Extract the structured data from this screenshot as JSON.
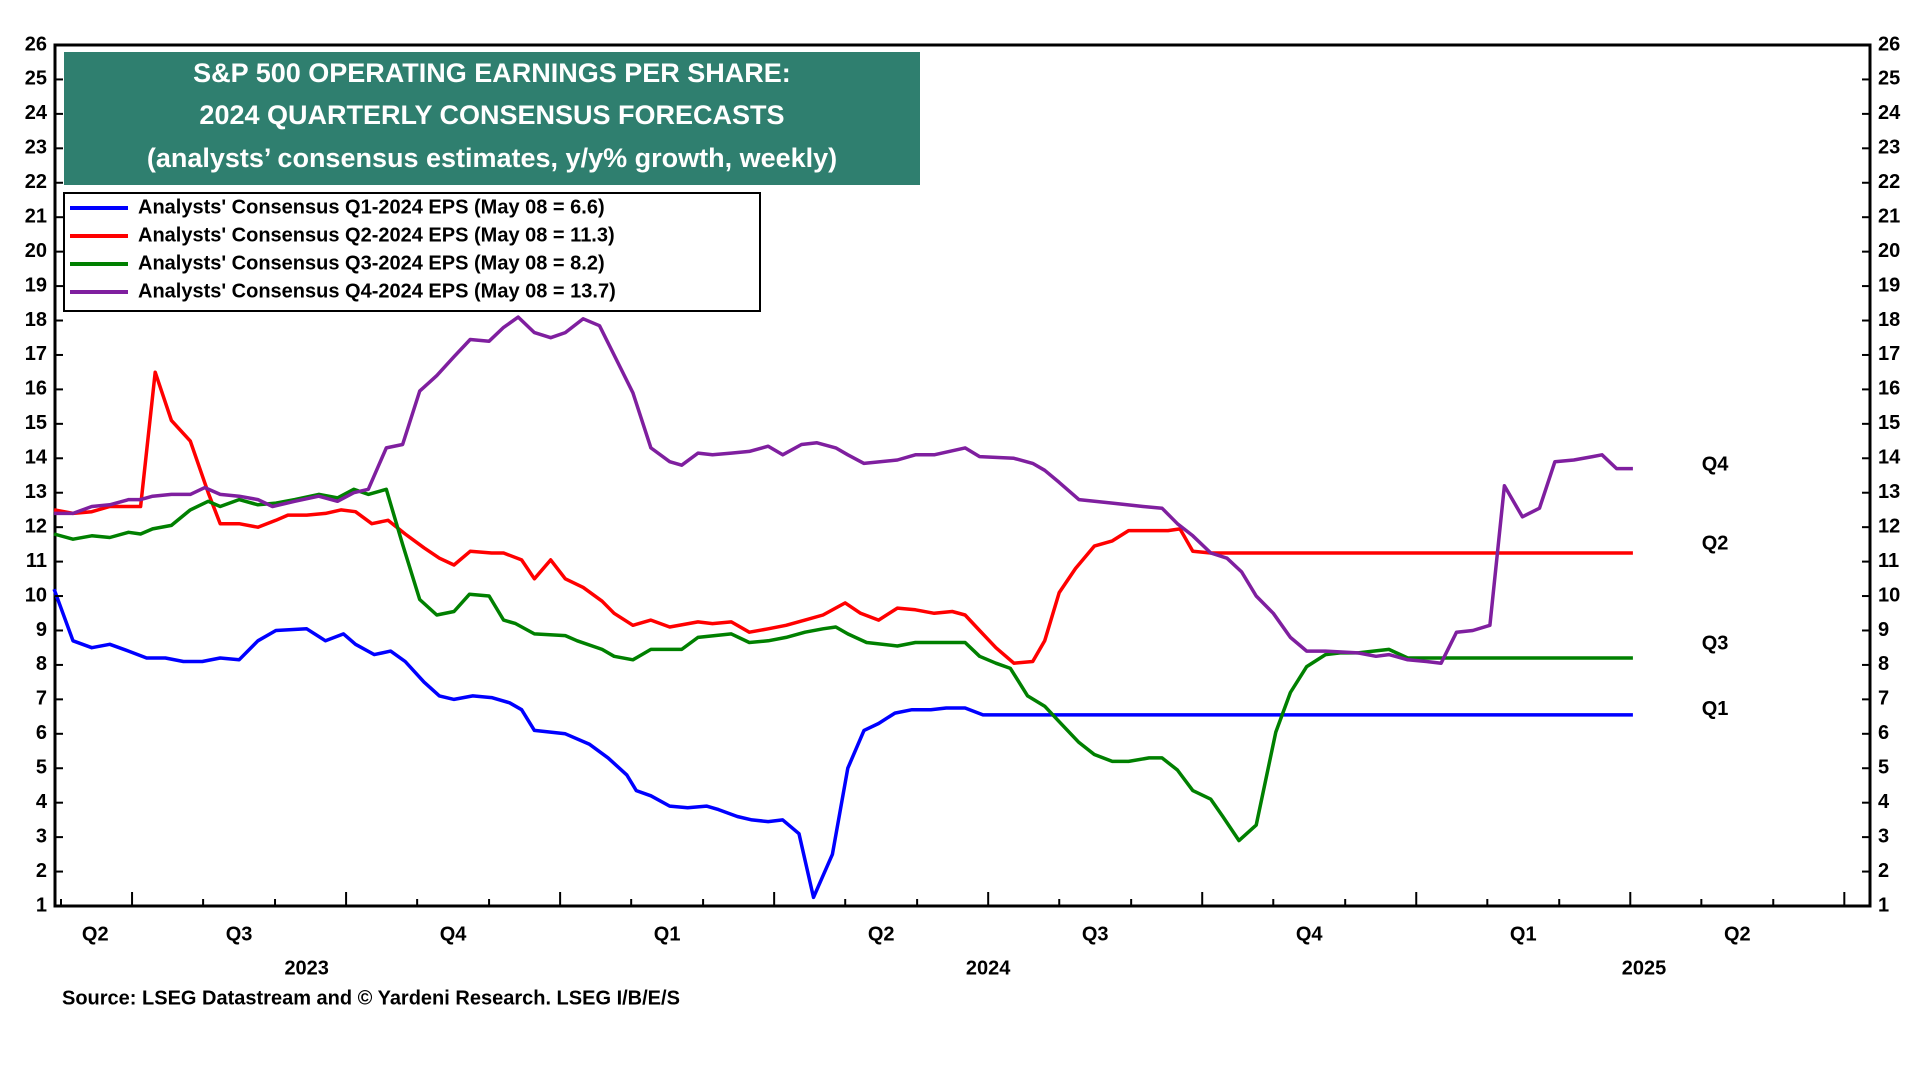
{
  "chart_data": {
    "type": "line",
    "title": [
      "S&P 500 OPERATING EARNINGS PER SHARE:",
      "2024 QUARTERLY CONSENSUS FORECASTS",
      "(analysts’ consensus estimates, y/y% growth, weekly)"
    ],
    "source": "Source: LSEG Datastream and © Yardeni Research. LSEG I/B/E/S",
    "xlim": [
      2023.41,
      2025.53
    ],
    "ylim": [
      1,
      26
    ],
    "yticks": [
      1,
      2,
      3,
      4,
      5,
      6,
      7,
      8,
      9,
      10,
      11,
      12,
      13,
      14,
      15,
      16,
      17,
      18,
      19,
      20,
      21,
      22,
      23,
      24,
      25,
      26
    ],
    "xticks": [
      2023.5,
      2023.75,
      2024,
      2024.25,
      2024.5,
      2024.75,
      2025,
      2025.25,
      2025.5
    ],
    "xminorticks": [
      2023.417,
      2023.583,
      2023.667,
      2023.833,
      2023.917,
      2024.083,
      2024.167,
      2024.333,
      2024.417,
      2024.583,
      2024.667,
      2024.833,
      2024.917,
      2025.083,
      2025.167,
      2025.333,
      2025.417
    ],
    "quarter_labels": [
      {
        "value": 2023.457,
        "label": "Q2"
      },
      {
        "value": 2023.625,
        "label": "Q3"
      },
      {
        "value": 2023.875,
        "label": "Q4"
      },
      {
        "value": 2024.125,
        "label": "Q1"
      },
      {
        "value": 2024.375,
        "label": "Q2"
      },
      {
        "value": 2024.625,
        "label": "Q3"
      },
      {
        "value": 2024.875,
        "label": "Q4"
      },
      {
        "value": 2025.125,
        "label": "Q1"
      },
      {
        "value": 2025.375,
        "label": "Q2"
      }
    ],
    "year_labels": [
      {
        "value": 2023.704,
        "label": "2023"
      },
      {
        "value": 2024.5,
        "label": "2024"
      },
      {
        "value": 2025.266,
        "label": "2025"
      }
    ],
    "legend": "upper left",
    "annotations": [
      {
        "text": "Q4",
        "x": 2025.349,
        "y": 13.8,
        "color": "#7f1f9f"
      },
      {
        "text": "Q2",
        "x": 2025.349,
        "y": 11.5,
        "color": "#ff0000"
      },
      {
        "text": "Q3",
        "x": 2025.349,
        "y": 8.6,
        "color": "#008000"
      },
      {
        "text": "Q1",
        "x": 2025.349,
        "y": 6.7,
        "color": "#0000ff"
      }
    ],
    "series": [
      {
        "name": "Analysts' Consensus Q1-2024 EPS (May 08 = 6.6)",
        "color": "#0000ff",
        "x": [
          2023.409,
          2023.431,
          2023.453,
          2023.474,
          2023.496,
          2023.517,
          2023.539,
          2023.56,
          2023.582,
          2023.603,
          2023.625,
          2023.647,
          2023.668,
          2023.704,
          2023.726,
          2023.747,
          2023.761,
          2023.783,
          2023.802,
          2023.819,
          2023.841,
          2023.859,
          2023.876,
          2023.898,
          2023.92,
          2023.941,
          2023.955,
          2023.97,
          2024.006,
          2024.034,
          2024.056,
          2024.078,
          2024.089,
          2024.106,
          2024.128,
          2024.149,
          2024.171,
          2024.185,
          2024.207,
          2024.224,
          2024.243,
          2024.26,
          2024.279,
          2024.296,
          2024.318,
          2024.336,
          2024.355,
          2024.372,
          2024.391,
          2024.411,
          2024.433,
          2024.451,
          2024.473,
          2024.494,
          2025.253
        ],
        "values": [
          10.2,
          8.7,
          8.5,
          8.6,
          8.4,
          8.2,
          8.2,
          8.1,
          8.1,
          8.2,
          8.15,
          8.7,
          9.0,
          9.05,
          8.7,
          8.9,
          8.6,
          8.3,
          8.4,
          8.1,
          7.5,
          7.1,
          7.0,
          7.1,
          7.05,
          6.9,
          6.7,
          6.1,
          6.0,
          5.7,
          5.3,
          4.8,
          4.35,
          4.2,
          3.9,
          3.85,
          3.9,
          3.8,
          3.6,
          3.5,
          3.45,
          3.5,
          3.1,
          1.25,
          2.5,
          5.0,
          6.1,
          6.3,
          6.6,
          6.7,
          6.7,
          6.75,
          6.75,
          6.55,
          6.55
        ]
      },
      {
        "name": "Analysts' Consensus Q2-2024 EPS (May 08 = 11.3)",
        "color": "#ff0000",
        "x": [
          2023.409,
          2023.431,
          2023.453,
          2023.474,
          2023.496,
          2023.51,
          2023.527,
          2023.546,
          2023.568,
          2023.589,
          2023.603,
          2023.625,
          2023.647,
          2023.668,
          2023.682,
          2023.704,
          2023.726,
          2023.744,
          2023.761,
          2023.78,
          2023.799,
          2023.819,
          2023.841,
          2023.859,
          2023.876,
          2023.895,
          2023.92,
          2023.934,
          2023.955,
          2023.97,
          2023.989,
          2024.006,
          2024.027,
          2024.049,
          2024.063,
          2024.085,
          2024.106,
          2024.128,
          2024.161,
          2024.178,
          2024.2,
          2024.221,
          2024.243,
          2024.264,
          2024.286,
          2024.307,
          2024.333,
          2024.351,
          2024.372,
          2024.394,
          2024.415,
          2024.437,
          2024.458,
          2024.473,
          2024.49,
          2024.509,
          2024.53,
          2024.552,
          2024.566,
          2024.583,
          2024.602,
          2024.624,
          2024.645,
          2024.664,
          2024.688,
          2024.71,
          2024.724,
          2024.739,
          2024.76,
          2025.253
        ],
        "values": [
          12.5,
          12.4,
          12.45,
          12.6,
          12.6,
          12.6,
          16.5,
          15.1,
          14.5,
          13.0,
          12.1,
          12.1,
          12.0,
          12.2,
          12.35,
          12.35,
          12.4,
          12.5,
          12.45,
          12.1,
          12.2,
          11.8,
          11.4,
          11.1,
          10.9,
          11.3,
          11.25,
          11.25,
          11.05,
          10.5,
          11.05,
          10.5,
          10.25,
          9.85,
          9.5,
          9.15,
          9.3,
          9.1,
          9.25,
          9.2,
          9.25,
          8.95,
          9.05,
          9.15,
          9.3,
          9.45,
          9.8,
          9.5,
          9.3,
          9.65,
          9.6,
          9.5,
          9.55,
          9.45,
          9.0,
          8.5,
          8.05,
          8.1,
          8.7,
          10.1,
          10.8,
          11.45,
          11.6,
          11.9,
          11.9,
          11.9,
          11.95,
          11.3,
          11.25,
          11.25
        ]
      },
      {
        "name": "Analysts' Consensus Q3-2024 EPS (May 08 = 8.2)",
        "color": "#008000",
        "x": [
          2023.409,
          2023.431,
          2023.453,
          2023.474,
          2023.496,
          2023.51,
          2023.524,
          2023.546,
          2023.568,
          2023.589,
          2023.603,
          2023.625,
          2023.647,
          2023.668,
          2023.69,
          2023.718,
          2023.74,
          2023.759,
          2023.776,
          2023.797,
          2023.816,
          2023.836,
          2023.856,
          2023.876,
          2023.894,
          2023.917,
          2023.934,
          2023.948,
          2023.97,
          2024.006,
          2024.02,
          2024.049,
          2024.063,
          2024.085,
          2024.106,
          2024.142,
          2024.161,
          2024.2,
          2024.221,
          2024.243,
          2024.264,
          2024.286,
          2024.307,
          2024.322,
          2024.336,
          2024.358,
          2024.394,
          2024.415,
          2024.451,
          2024.473,
          2024.49,
          2024.509,
          2024.526,
          2024.546,
          2024.566,
          2024.583,
          2024.606,
          2024.624,
          2024.645,
          2024.664,
          2024.688,
          2024.703,
          2024.721,
          2024.739,
          2024.76,
          2024.774,
          2024.793,
          2024.813,
          2024.836,
          2024.853,
          2024.872,
          2024.894,
          2024.911,
          2024.932,
          2024.968,
          2024.99,
          2025.253
        ],
        "values": [
          11.8,
          11.65,
          11.75,
          11.7,
          11.85,
          11.8,
          11.95,
          12.05,
          12.5,
          12.75,
          12.6,
          12.8,
          12.65,
          12.7,
          12.8,
          12.95,
          12.85,
          13.1,
          12.95,
          13.1,
          11.5,
          9.9,
          9.45,
          9.55,
          10.05,
          10.0,
          9.3,
          9.2,
          8.9,
          8.85,
          8.7,
          8.45,
          8.25,
          8.15,
          8.45,
          8.45,
          8.8,
          8.9,
          8.65,
          8.7,
          8.8,
          8.95,
          9.05,
          9.1,
          8.9,
          8.65,
          8.55,
          8.65,
          8.65,
          8.65,
          8.25,
          8.05,
          7.9,
          7.1,
          6.8,
          6.35,
          5.75,
          5.4,
          5.2,
          5.2,
          5.3,
          5.3,
          4.95,
          4.35,
          4.1,
          3.6,
          2.9,
          3.35,
          6.05,
          7.2,
          7.95,
          8.3,
          8.35,
          8.35,
          8.45,
          8.2,
          8.2
        ]
      },
      {
        "name": "Analysts' Consensus Q4-2024 EPS (May 08 = 13.7)",
        "color": "#7f1f9f",
        "x": [
          2023.409,
          2023.431,
          2023.453,
          2023.474,
          2023.496,
          2023.51,
          2023.524,
          2023.546,
          2023.568,
          2023.585,
          2023.603,
          2023.625,
          2023.647,
          2023.664,
          2023.69,
          2023.718,
          2023.74,
          2023.759,
          2023.776,
          2023.797,
          2023.816,
          2023.836,
          2023.856,
          2023.876,
          2023.895,
          2023.917,
          2023.934,
          2023.951,
          2023.97,
          2023.989,
          2024.006,
          2024.027,
          2024.046,
          2024.063,
          2024.085,
          2024.106,
          2024.128,
          2024.142,
          2024.161,
          2024.178,
          2024.2,
          2024.221,
          2024.243,
          2024.26,
          2024.282,
          2024.3,
          2024.322,
          2024.336,
          2024.355,
          2024.394,
          2024.415,
          2024.437,
          2024.473,
          2024.49,
          2024.53,
          2024.552,
          2024.566,
          2024.583,
          2024.606,
          2024.645,
          2024.681,
          2024.703,
          2024.721,
          2024.739,
          2024.76,
          2024.779,
          2024.796,
          2024.813,
          2024.833,
          2024.853,
          2024.872,
          2024.894,
          2024.932,
          2024.953,
          2024.968,
          2024.99,
          2025.012,
          2025.029,
          2025.047,
          2025.066,
          2025.086,
          2025.103,
          2025.124,
          2025.144,
          2025.162,
          2025.184,
          2025.206,
          2025.217,
          2025.234,
          2025.253
        ],
        "values": [
          12.4,
          12.4,
          12.6,
          12.65,
          12.8,
          12.8,
          12.9,
          12.95,
          12.95,
          13.15,
          12.95,
          12.9,
          12.8,
          12.6,
          12.75,
          12.9,
          12.75,
          13.0,
          13.1,
          14.3,
          14.4,
          15.95,
          16.4,
          16.95,
          17.45,
          17.4,
          17.8,
          18.1,
          17.65,
          17.5,
          17.65,
          18.05,
          17.85,
          17.0,
          15.9,
          14.3,
          13.9,
          13.8,
          14.15,
          14.1,
          14.15,
          14.2,
          14.35,
          14.1,
          14.4,
          14.45,
          14.3,
          14.1,
          13.85,
          13.95,
          14.1,
          14.1,
          14.3,
          14.05,
          14.0,
          13.85,
          13.65,
          13.3,
          12.8,
          12.7,
          12.6,
          12.55,
          12.1,
          11.75,
          11.25,
          11.1,
          10.7,
          10.0,
          9.5,
          8.8,
          8.4,
          8.4,
          8.35,
          8.25,
          8.3,
          8.15,
          8.1,
          8.05,
          8.95,
          9.0,
          9.15,
          13.2,
          12.3,
          12.55,
          13.9,
          13.95,
          14.05,
          14.1,
          13.7,
          13.7
        ]
      }
    ]
  }
}
